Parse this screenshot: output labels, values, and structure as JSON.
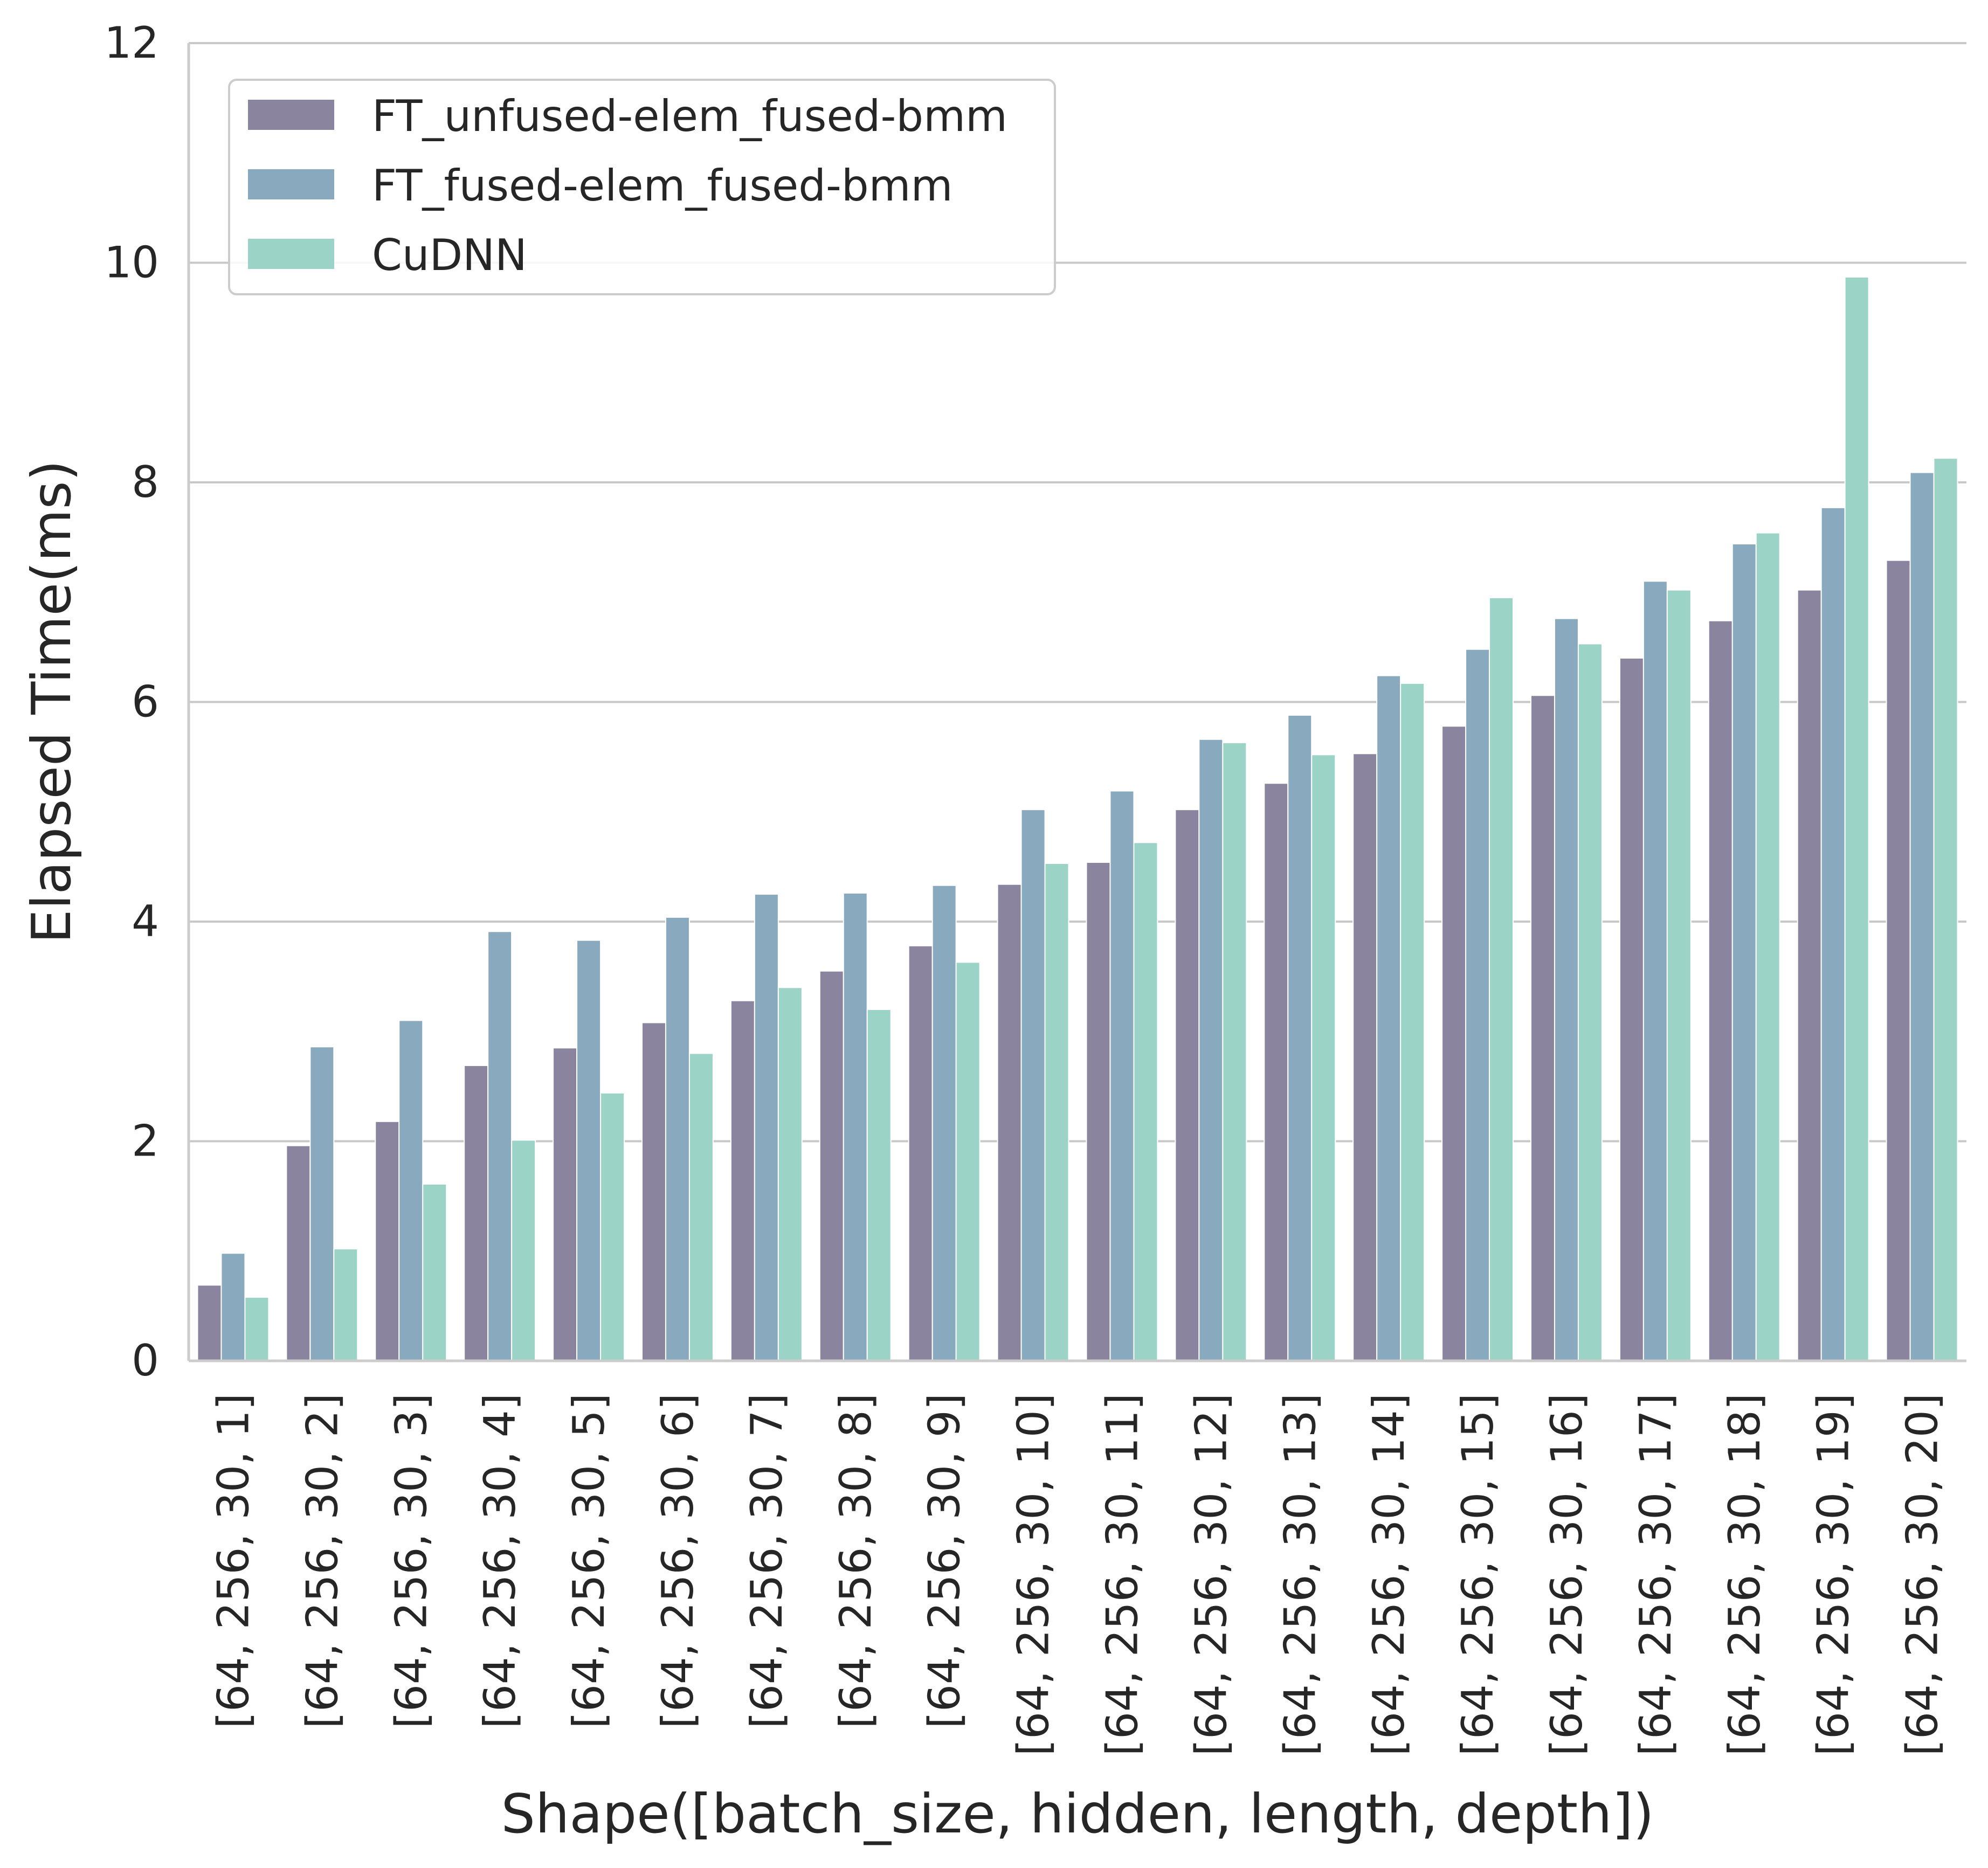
{
  "chart_data": {
    "type": "bar",
    "title": "",
    "xlabel": "Shape([batch_size, hidden, length, depth])",
    "ylabel": "Elapsed Time(ms)",
    "ylim": [
      0,
      12
    ],
    "yticks": [
      "0",
      "2",
      "4",
      "6",
      "8",
      "10",
      "12"
    ],
    "grid": "horizontal",
    "legend_position": "top-left",
    "categories": [
      "[64, 256, 30, 1]",
      "[64, 256, 30, 2]",
      "[64, 256, 30, 3]",
      "[64, 256, 30, 4]",
      "[64, 256, 30, 5]",
      "[64, 256, 30, 6]",
      "[64, 256, 30, 7]",
      "[64, 256, 30, 8]",
      "[64, 256, 30, 9]",
      "[64, 256, 30, 10]",
      "[64, 256, 30, 11]",
      "[64, 256, 30, 12]",
      "[64, 256, 30, 13]",
      "[64, 256, 30, 14]",
      "[64, 256, 30, 15]",
      "[64, 256, 30, 16]",
      "[64, 256, 30, 17]",
      "[64, 256, 30, 18]",
      "[64, 256, 30, 19]",
      "[64, 256, 30, 20]"
    ],
    "series": [
      {
        "name": "FT_unfused-elem_fused-bmm",
        "color": "#8b849e",
        "values": [
          0.69,
          1.96,
          2.18,
          2.69,
          2.85,
          3.08,
          3.28,
          3.55,
          3.78,
          4.34,
          4.54,
          5.02,
          5.26,
          5.53,
          5.78,
          6.06,
          6.4,
          6.74,
          7.02,
          7.29
        ]
      },
      {
        "name": "FT_fused-elem_fused-bmm",
        "color": "#89a9be",
        "values": [
          0.98,
          2.86,
          3.1,
          3.91,
          3.83,
          4.04,
          4.25,
          4.26,
          4.33,
          5.02,
          5.19,
          5.66,
          5.88,
          6.24,
          6.48,
          6.76,
          7.1,
          7.44,
          7.77,
          8.09
        ]
      },
      {
        "name": "CuDNN",
        "color": "#9bd4c7",
        "values": [
          0.58,
          1.02,
          1.61,
          2.01,
          2.44,
          2.8,
          3.4,
          3.2,
          3.63,
          4.53,
          4.72,
          5.63,
          5.52,
          6.17,
          6.95,
          6.53,
          7.02,
          7.54,
          9.87,
          8.22
        ]
      }
    ]
  }
}
